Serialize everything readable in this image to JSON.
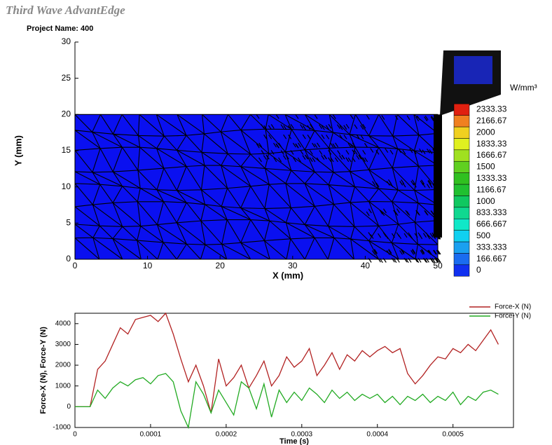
{
  "header": {
    "app_title": "Third Wave AdvantEdge",
    "project": "Project Name: 400"
  },
  "chart_data": [
    {
      "type": "mesh",
      "xlabel": "X (mm)",
      "ylabel": "Y (mm)",
      "xlim": [
        0,
        50
      ],
      "ylim": [
        0,
        30
      ],
      "xticks": [
        0,
        10,
        20,
        30,
        40,
        50
      ],
      "yticks": [
        0,
        5,
        10,
        15,
        20,
        25,
        30
      ],
      "region": {
        "x": [
          0,
          50
        ],
        "y": [
          0,
          20
        ]
      },
      "region_color": "#0a10f0",
      "colorbar_title": "W/mm³",
      "levels": [
        0,
        166.667,
        333.333,
        500,
        666.667,
        833.333,
        1000,
        1166.67,
        1333.33,
        1500,
        1666.67,
        1833.33,
        2000,
        2166.67,
        2333.33
      ],
      "level_colors": [
        "#1030f0",
        "#1a6cf0",
        "#1aa0f0",
        "#10d0f0",
        "#10e8c8",
        "#10d890",
        "#10c860",
        "#20c030",
        "#30c020",
        "#60d020",
        "#a0e020",
        "#e0f020",
        "#f0d020",
        "#f08020",
        "#e02010"
      ]
    },
    {
      "type": "line",
      "xlabel": "Time (s)",
      "ylabel": "Force-X (N), Force-Y (N)",
      "xlim": [
        0,
        0.00058
      ],
      "ylim": [
        -1000,
        4500
      ],
      "xticks": [
        0,
        0.0001,
        0.0002,
        0.0003,
        0.0004,
        0.0005
      ],
      "yticks": [
        -1000,
        0,
        1000,
        2000,
        3000,
        4000
      ],
      "legend": "top right",
      "x": [
        0,
        1e-05,
        2e-05,
        3e-05,
        4e-05,
        5e-05,
        6e-05,
        7e-05,
        8e-05,
        9e-05,
        0.0001,
        0.00011,
        0.00012,
        0.00013,
        0.00014,
        0.00015,
        0.00016,
        0.00017,
        0.00018,
        0.00019,
        0.0002,
        0.00021,
        0.00022,
        0.00023,
        0.00024,
        0.00025,
        0.00026,
        0.00027,
        0.00028,
        0.00029,
        0.0003,
        0.00031,
        0.00032,
        0.00033,
        0.00034,
        0.00035,
        0.00036,
        0.00037,
        0.00038,
        0.00039,
        0.0004,
        0.00041,
        0.00042,
        0.00043,
        0.00044,
        0.00045,
        0.00046,
        0.00047,
        0.00048,
        0.00049,
        0.0005,
        0.00051,
        0.00052,
        0.00053,
        0.00054,
        0.00055,
        0.00056
      ],
      "series": [
        {
          "name": "Force-X (N)",
          "color": "#b22222",
          "values": [
            0,
            0,
            0,
            1800,
            2200,
            3000,
            3800,
            3500,
            4200,
            4300,
            4400,
            4100,
            4500,
            3500,
            2300,
            1200,
            2000,
            1000,
            -300,
            2300,
            1000,
            1400,
            2000,
            900,
            1500,
            2200,
            1000,
            1500,
            2400,
            1900,
            2200,
            2800,
            1500,
            2000,
            2600,
            1800,
            2500,
            2200,
            2700,
            2400,
            2700,
            2900,
            2600,
            2800,
            1600,
            1100,
            1500,
            2000,
            2400,
            2300,
            2800,
            2600,
            3000,
            2700,
            3200,
            3700,
            3000
          ]
        },
        {
          "name": "Force-Y (N)",
          "color": "#22aa22",
          "values": [
            0,
            0,
            0,
            800,
            400,
            900,
            1200,
            1000,
            1300,
            1400,
            1100,
            1500,
            1600,
            1200,
            -200,
            -1000,
            1200,
            600,
            -300,
            800,
            200,
            -400,
            1200,
            900,
            -100,
            1100,
            -500,
            800,
            200,
            700,
            300,
            900,
            600,
            200,
            800,
            400,
            700,
            300,
            600,
            400,
            600,
            200,
            500,
            100,
            500,
            300,
            600,
            200,
            500,
            300,
            700,
            100,
            500,
            300,
            700,
            800,
            600
          ]
        }
      ]
    }
  ]
}
